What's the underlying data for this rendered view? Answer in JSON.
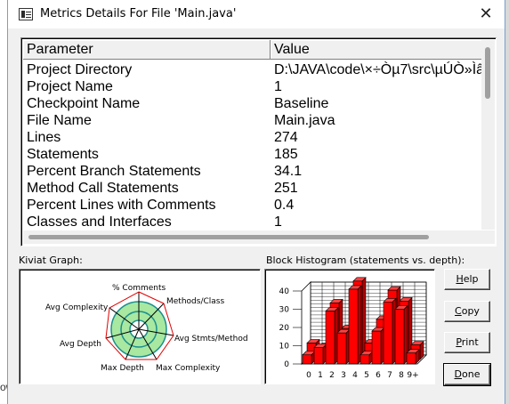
{
  "window": {
    "title": "Metrics Details For File 'Main.java'",
    "close_glyph": "✕"
  },
  "background": {
    "peek_text": "ow"
  },
  "table": {
    "columns": [
      "Parameter",
      "Value"
    ],
    "rows": [
      [
        "Project Directory",
        "D:\\JAVA\\code\\×÷Òµ7\\src\\µÚÒ»Ìâ"
      ],
      [
        "Project Name",
        "1"
      ],
      [
        "Checkpoint Name",
        "Baseline"
      ],
      [
        "File Name",
        "Main.java"
      ],
      [
        "Lines",
        "274"
      ],
      [
        "Statements",
        "185"
      ],
      [
        "Percent Branch Statements",
        "34.1"
      ],
      [
        "Method Call Statements",
        "251"
      ],
      [
        "Percent Lines with Comments",
        "0.4"
      ],
      [
        "Classes and Interfaces",
        "1"
      ]
    ]
  },
  "kiviat": {
    "label": "Kiviat Graph:",
    "axes": [
      "% Comments",
      "Methods/Class",
      "Avg Stmts/Method",
      "Max Complexity",
      "Max Depth",
      "Avg Depth",
      "Avg Complexity"
    ]
  },
  "histogram": {
    "label": "Block Histogram (statements vs. depth):"
  },
  "chart_data": {
    "type": "bar",
    "title": "Block Histogram (statements vs. depth):",
    "categories": [
      "0",
      "1",
      "2",
      "3",
      "4",
      "5",
      "6",
      "7",
      "8",
      "9+"
    ],
    "series": [
      {
        "values": [
          5,
          9,
          29,
          17,
          41,
          5,
          18,
          34,
          30,
          6
        ]
      },
      {
        "values": [
          9,
          7,
          31,
          17,
          43,
          9,
          22,
          38,
          32,
          8
        ]
      }
    ],
    "ylim": [
      0,
      40
    ],
    "yticks": [
      "0",
      "10",
      "20",
      "30",
      "40"
    ],
    "color": "#ff0000"
  },
  "buttons": {
    "help": {
      "accel": "H",
      "rest": "elp"
    },
    "copy": {
      "accel": "C",
      "rest": "opy"
    },
    "print": {
      "accel": "P",
      "rest": "rint"
    },
    "done": {
      "accel": "D",
      "rest": "one"
    }
  }
}
